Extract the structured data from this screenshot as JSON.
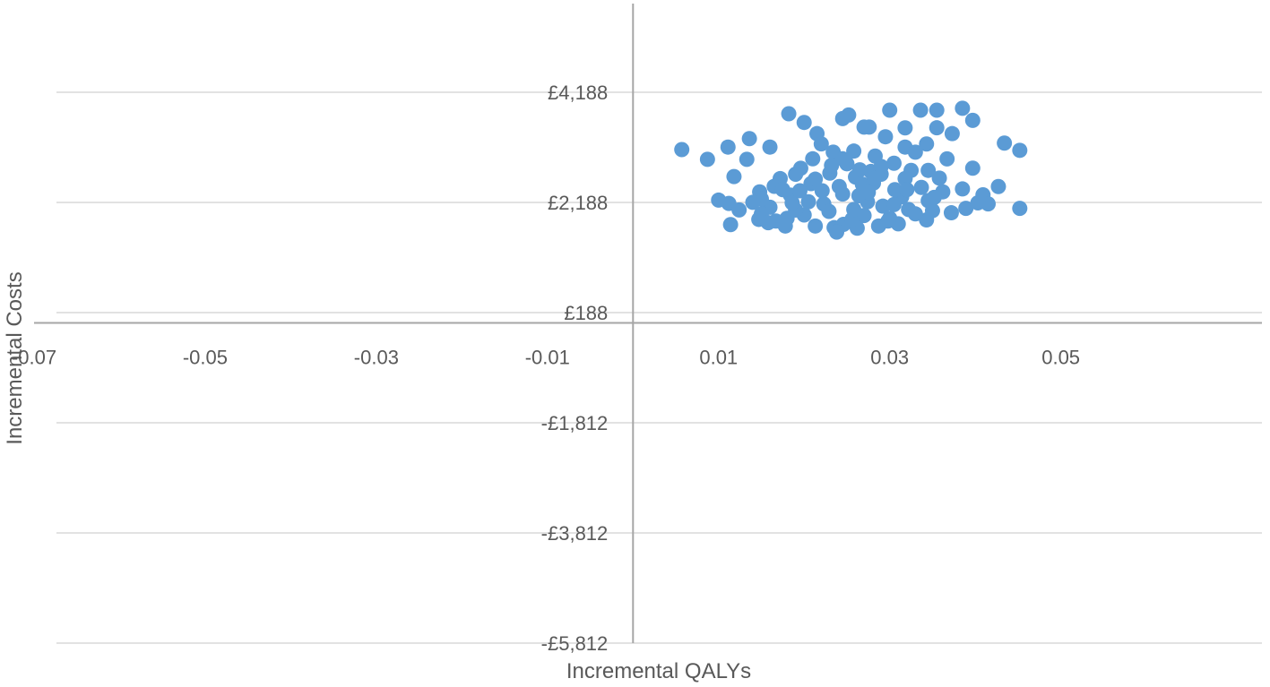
{
  "chart_data": {
    "type": "scatter",
    "title": "",
    "xlabel": "Incremental QALYs",
    "ylabel": "Incremental Costs",
    "xlim": [
      -0.07,
      0.0735
    ],
    "ylim": [
      -5812,
      5812
    ],
    "x_ticks": [
      -0.07,
      -0.05,
      -0.03,
      -0.01,
      0.01,
      0.03,
      0.05
    ],
    "x_tick_labels": [
      "-0.07",
      "-0.05",
      "-0.03",
      "-0.01",
      "0.01",
      "0.03",
      "0.05"
    ],
    "y_ticks": [
      4188,
      2188,
      188,
      -1812,
      -3812,
      -5812
    ],
    "y_tick_labels": [
      "£4,188",
      "£2,188",
      "£188",
      "-£1,812",
      "-£3,812",
      "-£5,812"
    ],
    "grid": true,
    "legend": "none",
    "series": [
      {
        "color": "#5b9bd5",
        "points": [
          [
            0.0057,
            3148
          ],
          [
            0.0087,
            2971
          ],
          [
            0.0111,
            3193
          ],
          [
            0.0136,
            3346
          ],
          [
            0.0182,
            3798
          ],
          [
            0.02,
            3640
          ],
          [
            0.0215,
            3437
          ],
          [
            0.0245,
            3711
          ],
          [
            0.0252,
            3776
          ],
          [
            0.0276,
            3556
          ],
          [
            0.03,
            3863
          ],
          [
            0.0318,
            3542
          ],
          [
            0.0336,
            3863
          ],
          [
            0.0355,
            3863
          ],
          [
            0.0385,
            3898
          ],
          [
            0.0397,
            3678
          ],
          [
            0.0373,
            3437
          ],
          [
            0.0343,
            3249
          ],
          [
            0.0434,
            3265
          ],
          [
            0.0452,
            3134
          ],
          [
            0.0397,
            2810
          ],
          [
            0.0385,
            2433
          ],
          [
            0.0409,
            2326
          ],
          [
            0.0427,
            2477
          ],
          [
            0.0452,
            2080
          ],
          [
            0.0415,
            2161
          ],
          [
            0.0403,
            2180
          ],
          [
            0.0112,
            2170
          ],
          [
            0.01,
            2230
          ],
          [
            0.0114,
            1786
          ],
          [
            0.0118,
            2658
          ],
          [
            0.0133,
            2971
          ],
          [
            0.016,
            3193
          ],
          [
            0.027,
            3556
          ],
          [
            0.0318,
            3193
          ],
          [
            0.0355,
            3543
          ],
          [
            0.0367,
            2979
          ],
          [
            0.0124,
            2052
          ],
          [
            0.0148,
            2379
          ],
          [
            0.0172,
            2620
          ],
          [
            0.0196,
            2808
          ],
          [
            0.016,
            2100
          ],
          [
            0.0184,
            2320
          ],
          [
            0.0208,
            2529
          ],
          [
            0.023,
            2720
          ],
          [
            0.025,
            2890
          ],
          [
            0.02,
            1960
          ],
          [
            0.0223,
            2160
          ],
          [
            0.0245,
            2340
          ],
          [
            0.0268,
            2520
          ],
          [
            0.029,
            2700
          ],
          [
            0.018,
            1900
          ],
          [
            0.0246,
            1790
          ],
          [
            0.027,
            1950
          ],
          [
            0.0292,
            2120
          ],
          [
            0.0314,
            2290
          ],
          [
            0.0337,
            2460
          ],
          [
            0.0358,
            2630
          ],
          [
            0.03,
            1900
          ],
          [
            0.0322,
            2060
          ],
          [
            0.0345,
            2220
          ],
          [
            0.0362,
            2380
          ],
          [
            0.021,
            2980
          ],
          [
            0.0234,
            3100
          ],
          [
            0.0258,
            3120
          ],
          [
            0.0283,
            3030
          ],
          [
            0.0305,
            2900
          ],
          [
            0.0325,
            2770
          ],
          [
            0.019,
            2700
          ],
          [
            0.0165,
            2480
          ],
          [
            0.015,
            1980
          ],
          [
            0.0147,
            1880
          ],
          [
            0.0167,
            1850
          ],
          [
            0.0178,
            1760
          ],
          [
            0.0262,
            1720
          ],
          [
            0.0287,
            1760
          ],
          [
            0.031,
            1800
          ],
          [
            0.0343,
            1870
          ],
          [
            0.0372,
            2000
          ],
          [
            0.0389,
            2080
          ],
          [
            0.0213,
            1760
          ],
          [
            0.0235,
            1730
          ],
          [
            0.0221,
            2400
          ],
          [
            0.0264,
            2310
          ],
          [
            0.0281,
            2540
          ],
          [
            0.0306,
            2420
          ],
          [
            0.0232,
            2860
          ],
          [
            0.0278,
            2750
          ],
          [
            0.015,
            2250
          ],
          [
            0.0345,
            2770
          ],
          [
            0.0245,
            2980
          ],
          [
            0.026,
            2650
          ],
          [
            0.029,
            2840
          ],
          [
            0.0205,
            2200
          ],
          [
            0.019,
            2050
          ],
          [
            0.0175,
            2420
          ],
          [
            0.0295,
            3380
          ],
          [
            0.033,
            3100
          ],
          [
            0.022,
            3250
          ],
          [
            0.035,
            2040
          ],
          [
            0.0238,
            1650
          ],
          [
            0.0256,
            1880
          ],
          [
            0.0274,
            2200
          ],
          [
            0.0298,
            1850
          ],
          [
            0.033,
            1980
          ],
          [
            0.0352,
            2280
          ],
          [
            0.014,
            2190
          ],
          [
            0.0158,
            1820
          ],
          [
            0.0229,
            2026
          ],
          [
            0.0318,
            2621
          ],
          [
            0.0241,
            2477
          ],
          [
            0.0213,
            2610
          ],
          [
            0.0186,
            2180
          ],
          [
            0.0258,
            2060
          ],
          [
            0.0275,
            2370
          ],
          [
            0.0305,
            2150
          ],
          [
            0.032,
            2420
          ],
          [
            0.0265,
            2780
          ],
          [
            0.0195,
            2400
          ],
          [
            0.0282,
            2620
          ]
        ]
      }
    ]
  }
}
